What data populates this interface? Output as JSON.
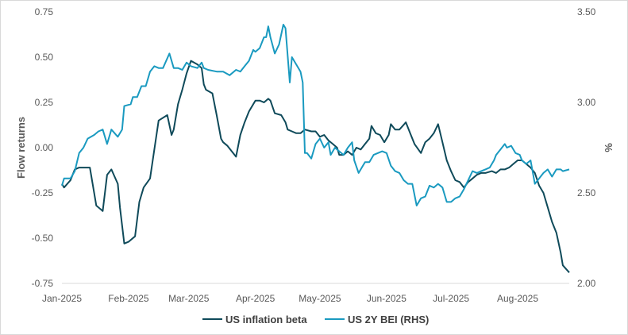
{
  "chart_data": {
    "type": "line",
    "title": "",
    "ylabel": "Flow returns",
    "y2label": "%",
    "ylim": [
      -0.75,
      0.75
    ],
    "y2lim": [
      2.0,
      3.5
    ],
    "yticks": [
      "0.75",
      "0.50",
      "0.25",
      "0.00",
      "-0.25",
      "-0.50",
      "-0.75"
    ],
    "y2ticks": [
      "3.50",
      "3.00",
      "2.50",
      "2.00"
    ],
    "xticks": [
      "Jan-2025",
      "Feb-2025",
      "Mar-2025",
      "Apr-2025",
      "May-2025",
      "Jun-2025",
      "Jul-2025",
      "Aug-2025"
    ],
    "xlim": [
      "2025-01-01",
      "2025-08-25"
    ],
    "grid": false,
    "legend_position": "bottom",
    "series": [
      {
        "name": "US inflation beta",
        "axis": "left",
        "color": "#0f4a5a",
        "points": [
          [
            "2025-01-01",
            -0.2
          ],
          [
            "2025-01-02",
            -0.22
          ],
          [
            "2025-01-05",
            -0.18
          ],
          [
            "2025-01-07",
            -0.12
          ],
          [
            "2025-01-09",
            -0.11
          ],
          [
            "2025-01-14",
            -0.11
          ],
          [
            "2025-01-17",
            -0.32
          ],
          [
            "2025-01-20",
            -0.35
          ],
          [
            "2025-01-22",
            -0.15
          ],
          [
            "2025-01-24",
            -0.12
          ],
          [
            "2025-01-27",
            -0.2
          ],
          [
            "2025-01-28",
            -0.33
          ],
          [
            "2025-01-30",
            -0.53
          ],
          [
            "2025-02-01",
            -0.52
          ],
          [
            "2025-02-04",
            -0.49
          ],
          [
            "2025-02-06",
            -0.3
          ],
          [
            "2025-02-08",
            -0.22
          ],
          [
            "2025-02-11",
            -0.17
          ],
          [
            "2025-02-14",
            0.07
          ],
          [
            "2025-02-15",
            0.15
          ],
          [
            "2025-02-19",
            0.18
          ],
          [
            "2025-02-21",
            0.07
          ],
          [
            "2025-02-22",
            0.1
          ],
          [
            "2025-02-24",
            0.24
          ],
          [
            "2025-02-26",
            0.32
          ],
          [
            "2025-02-28",
            0.41
          ],
          [
            "2025-03-02",
            0.48
          ],
          [
            "2025-03-05",
            0.46
          ],
          [
            "2025-03-07",
            0.44
          ],
          [
            "2025-03-08",
            0.35
          ],
          [
            "2025-03-09",
            0.32
          ],
          [
            "2025-03-12",
            0.3
          ],
          [
            "2025-03-14",
            0.18
          ],
          [
            "2025-03-16",
            0.05
          ],
          [
            "2025-03-17",
            0.03
          ],
          [
            "2025-03-19",
            0.01
          ],
          [
            "2025-03-21",
            -0.02
          ],
          [
            "2025-03-23",
            -0.05
          ],
          [
            "2025-03-25",
            0.07
          ],
          [
            "2025-03-27",
            0.14
          ],
          [
            "2025-03-29",
            0.2
          ],
          [
            "2025-04-01",
            0.26
          ],
          [
            "2025-04-03",
            0.26
          ],
          [
            "2025-04-05",
            0.25
          ],
          [
            "2025-04-07",
            0.27
          ],
          [
            "2025-04-08",
            0.26
          ],
          [
            "2025-04-10",
            0.19
          ],
          [
            "2025-04-13",
            0.18
          ],
          [
            "2025-04-15",
            0.14
          ],
          [
            "2025-04-16",
            0.1
          ],
          [
            "2025-04-18",
            0.09
          ],
          [
            "2025-04-20",
            0.08
          ],
          [
            "2025-04-22",
            0.08
          ],
          [
            "2025-04-24",
            0.1
          ],
          [
            "2025-04-27",
            0.09
          ],
          [
            "2025-04-29",
            0.09
          ],
          [
            "2025-05-01",
            0.06
          ],
          [
            "2025-05-03",
            0.07
          ],
          [
            "2025-05-05",
            0.04
          ],
          [
            "2025-05-07",
            0.02
          ],
          [
            "2025-05-09",
            0.0
          ],
          [
            "2025-05-10",
            -0.04
          ],
          [
            "2025-05-12",
            -0.04
          ],
          [
            "2025-05-14",
            -0.02
          ],
          [
            "2025-05-16",
            -0.04
          ],
          [
            "2025-05-18",
            0.0
          ],
          [
            "2025-05-20",
            -0.01
          ],
          [
            "2025-05-22",
            0.02
          ],
          [
            "2025-05-24",
            0.05
          ],
          [
            "2025-05-25",
            0.12
          ],
          [
            "2025-05-27",
            0.08
          ],
          [
            "2025-05-29",
            0.07
          ],
          [
            "2025-05-31",
            0.03
          ],
          [
            "2025-06-02",
            0.07
          ],
          [
            "2025-06-03",
            0.13
          ],
          [
            "2025-06-05",
            0.1
          ],
          [
            "2025-06-07",
            0.1
          ],
          [
            "2025-06-10",
            0.14
          ],
          [
            "2025-06-12",
            0.08
          ],
          [
            "2025-06-14",
            0.02
          ],
          [
            "2025-06-17",
            -0.03
          ],
          [
            "2025-06-19",
            0.03
          ],
          [
            "2025-06-21",
            0.05
          ],
          [
            "2025-06-23",
            0.08
          ],
          [
            "2025-06-25",
            0.13
          ],
          [
            "2025-06-27",
            0.03
          ],
          [
            "2025-06-29",
            -0.07
          ],
          [
            "2025-07-01",
            -0.13
          ],
          [
            "2025-07-03",
            -0.18
          ],
          [
            "2025-07-05",
            -0.19
          ],
          [
            "2025-07-07",
            -0.22
          ],
          [
            "2025-07-09",
            -0.19
          ],
          [
            "2025-07-11",
            -0.17
          ],
          [
            "2025-07-13",
            -0.15
          ],
          [
            "2025-07-15",
            -0.14
          ],
          [
            "2025-07-17",
            -0.14
          ],
          [
            "2025-07-20",
            -0.13
          ],
          [
            "2025-07-22",
            -0.14
          ],
          [
            "2025-07-24",
            -0.12
          ],
          [
            "2025-07-26",
            -0.12
          ],
          [
            "2025-07-28",
            -0.11
          ],
          [
            "2025-07-30",
            -0.09
          ],
          [
            "2025-08-01",
            -0.07
          ],
          [
            "2025-08-03",
            -0.07
          ],
          [
            "2025-08-05",
            -0.09
          ],
          [
            "2025-08-07",
            -0.11
          ],
          [
            "2025-08-09",
            -0.14
          ],
          [
            "2025-08-11",
            -0.21
          ],
          [
            "2025-08-13",
            -0.25
          ],
          [
            "2025-08-15",
            -0.33
          ],
          [
            "2025-08-17",
            -0.41
          ],
          [
            "2025-08-19",
            -0.47
          ],
          [
            "2025-08-21",
            -0.58
          ],
          [
            "2025-08-22",
            -0.65
          ],
          [
            "2025-08-25",
            -0.69
          ]
        ]
      },
      {
        "name": "US 2Y BEI (RHS)",
        "axis": "right",
        "color": "#1a9ac0",
        "points": [
          [
            "2025-01-01",
            2.54
          ],
          [
            "2025-01-02",
            2.58
          ],
          [
            "2025-01-05",
            2.58
          ],
          [
            "2025-01-07",
            2.62
          ],
          [
            "2025-01-09",
            2.72
          ],
          [
            "2025-01-11",
            2.75
          ],
          [
            "2025-01-13",
            2.8
          ],
          [
            "2025-01-16",
            2.82
          ],
          [
            "2025-01-18",
            2.84
          ],
          [
            "2025-01-20",
            2.85
          ],
          [
            "2025-01-22",
            2.77
          ],
          [
            "2025-01-24",
            2.85
          ],
          [
            "2025-01-27",
            2.81
          ],
          [
            "2025-01-29",
            2.85
          ],
          [
            "2025-01-30",
            2.98
          ],
          [
            "2025-02-02",
            2.99
          ],
          [
            "2025-02-03",
            3.03
          ],
          [
            "2025-02-05",
            3.03
          ],
          [
            "2025-02-07",
            3.09
          ],
          [
            "2025-02-09",
            3.09
          ],
          [
            "2025-02-11",
            3.17
          ],
          [
            "2025-02-13",
            3.2
          ],
          [
            "2025-02-15",
            3.19
          ],
          [
            "2025-02-17",
            3.19
          ],
          [
            "2025-02-20",
            3.27
          ],
          [
            "2025-02-22",
            3.19
          ],
          [
            "2025-02-24",
            3.19
          ],
          [
            "2025-02-26",
            3.18
          ],
          [
            "2025-02-28",
            3.22
          ],
          [
            "2025-03-02",
            3.2
          ],
          [
            "2025-03-05",
            3.19
          ],
          [
            "2025-03-07",
            3.22
          ],
          [
            "2025-03-08",
            3.19
          ],
          [
            "2025-03-10",
            3.18
          ],
          [
            "2025-03-14",
            3.17
          ],
          [
            "2025-03-17",
            3.17
          ],
          [
            "2025-03-20",
            3.15
          ],
          [
            "2025-03-23",
            3.18
          ],
          [
            "2025-03-25",
            3.17
          ],
          [
            "2025-03-27",
            3.2
          ],
          [
            "2025-03-29",
            3.23
          ],
          [
            "2025-03-31",
            3.29
          ],
          [
            "2025-04-01",
            3.28
          ],
          [
            "2025-04-03",
            3.3
          ],
          [
            "2025-04-05",
            3.36
          ],
          [
            "2025-04-06",
            3.36
          ],
          [
            "2025-04-07",
            3.42
          ],
          [
            "2025-04-08",
            3.36
          ],
          [
            "2025-04-10",
            3.27
          ],
          [
            "2025-04-12",
            3.32
          ],
          [
            "2025-04-14",
            3.43
          ],
          [
            "2025-04-15",
            3.41
          ],
          [
            "2025-04-17",
            3.11
          ],
          [
            "2025-04-18",
            3.25
          ],
          [
            "2025-04-20",
            3.21
          ],
          [
            "2025-04-22",
            3.17
          ],
          [
            "2025-04-23",
            3.11
          ],
          [
            "2025-04-24",
            2.72
          ],
          [
            "2025-04-25",
            2.72
          ],
          [
            "2025-04-27",
            2.69
          ],
          [
            "2025-04-29",
            2.77
          ],
          [
            "2025-05-01",
            2.8
          ],
          [
            "2025-05-03",
            2.75
          ],
          [
            "2025-05-05",
            2.78
          ],
          [
            "2025-05-06",
            2.71
          ],
          [
            "2025-05-08",
            2.75
          ],
          [
            "2025-05-10",
            2.73
          ],
          [
            "2025-05-12",
            2.71
          ],
          [
            "2025-05-14",
            2.75
          ],
          [
            "2025-05-16",
            2.78
          ],
          [
            "2025-05-17",
            2.68
          ],
          [
            "2025-05-19",
            2.61
          ],
          [
            "2025-05-21",
            2.65
          ],
          [
            "2025-05-22",
            2.67
          ],
          [
            "2025-05-24",
            2.67
          ],
          [
            "2025-05-26",
            2.71
          ],
          [
            "2025-05-28",
            2.72
          ],
          [
            "2025-05-30",
            2.73
          ],
          [
            "2025-06-01",
            2.72
          ],
          [
            "2025-06-03",
            2.65
          ],
          [
            "2025-06-05",
            2.62
          ],
          [
            "2025-06-07",
            2.61
          ],
          [
            "2025-06-09",
            2.57
          ],
          [
            "2025-06-11",
            2.55
          ],
          [
            "2025-06-13",
            2.55
          ],
          [
            "2025-06-15",
            2.43
          ],
          [
            "2025-06-17",
            2.47
          ],
          [
            "2025-06-19",
            2.48
          ],
          [
            "2025-06-21",
            2.54
          ],
          [
            "2025-06-23",
            2.53
          ],
          [
            "2025-06-25",
            2.55
          ],
          [
            "2025-06-27",
            2.53
          ],
          [
            "2025-06-29",
            2.45
          ],
          [
            "2025-07-01",
            2.45
          ],
          [
            "2025-07-03",
            2.47
          ],
          [
            "2025-07-05",
            2.48
          ],
          [
            "2025-07-07",
            2.52
          ],
          [
            "2025-07-09",
            2.57
          ],
          [
            "2025-07-11",
            2.62
          ],
          [
            "2025-07-13",
            2.61
          ],
          [
            "2025-07-15",
            2.62
          ],
          [
            "2025-07-17",
            2.63
          ],
          [
            "2025-07-19",
            2.64
          ],
          [
            "2025-07-21",
            2.68
          ],
          [
            "2025-07-22",
            2.71
          ],
          [
            "2025-07-24",
            2.74
          ],
          [
            "2025-07-26",
            2.77
          ],
          [
            "2025-07-27",
            2.75
          ],
          [
            "2025-07-29",
            2.76
          ],
          [
            "2025-07-31",
            2.72
          ],
          [
            "2025-08-02",
            2.71
          ],
          [
            "2025-08-03",
            2.68
          ],
          [
            "2025-08-05",
            2.66
          ],
          [
            "2025-08-07",
            2.68
          ],
          [
            "2025-08-09",
            2.55
          ],
          [
            "2025-08-11",
            2.58
          ],
          [
            "2025-08-13",
            2.61
          ],
          [
            "2025-08-15",
            2.63
          ],
          [
            "2025-08-17",
            2.59
          ],
          [
            "2025-08-19",
            2.63
          ],
          [
            "2025-08-21",
            2.63
          ],
          [
            "2025-08-22",
            2.62
          ],
          [
            "2025-08-25",
            2.63
          ]
        ]
      }
    ]
  }
}
